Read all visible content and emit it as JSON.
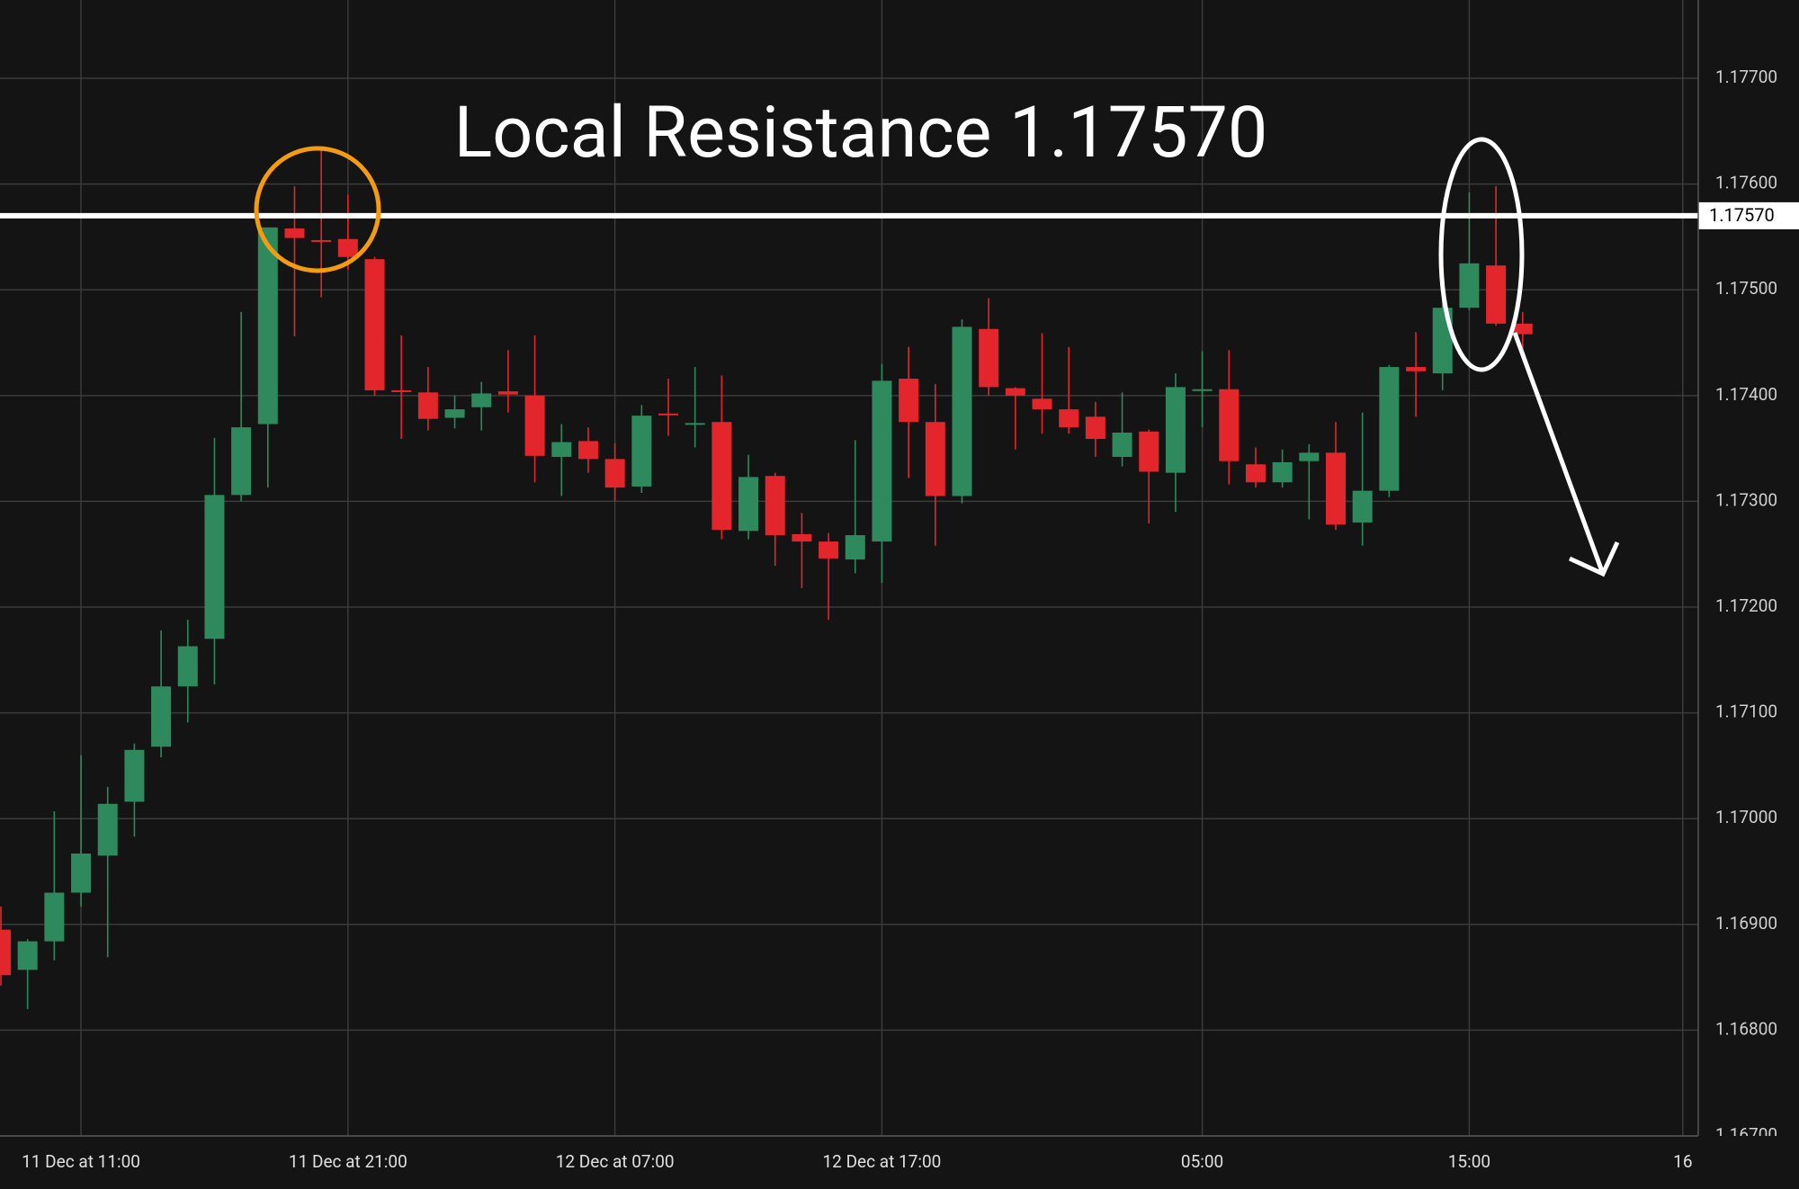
{
  "chart_data": {
    "type": "candlestick",
    "title": "Local Resistance 1.17570",
    "categories": [
      null,
      null,
      null,
      "11 Dec at 11:00",
      null,
      null,
      null,
      null,
      null,
      null,
      null,
      null,
      null,
      "11 Dec at 21:00",
      null,
      null,
      null,
      null,
      null,
      null,
      null,
      null,
      null,
      "12 Dec at 07:00",
      null,
      null,
      null,
      null,
      null,
      null,
      null,
      null,
      null,
      "12 Dec at 17:00",
      null,
      null,
      null,
      null,
      null,
      null,
      null,
      null,
      null,
      null,
      null,
      "05:00",
      null,
      null,
      null,
      null,
      null,
      null,
      null,
      null,
      null,
      "15:00",
      null,
      null,
      null,
      null,
      null,
      null,
      null,
      "16"
    ],
    "open": [
      1.16895,
      1.16857,
      1.16884,
      1.1693,
      1.16965,
      1.17016,
      1.17068,
      1.17125,
      1.1717,
      1.17306,
      1.17373,
      1.17558,
      1.17547,
      1.17548,
      1.17529,
      1.17405,
      1.17403,
      1.17379,
      1.17389,
      1.17404,
      1.174,
      1.17342,
      1.17357,
      1.1734,
      1.17314,
      1.17383,
      1.17373,
      1.17375,
      1.17272,
      1.17324,
      1.17269,
      1.17262,
      1.17245,
      1.17262,
      1.17416,
      1.17375,
      1.17305,
      1.17463,
      1.17407,
      1.17397,
      1.17387,
      1.1738,
      1.17342,
      1.17366,
      1.17327,
      1.17405,
      1.17406,
      1.17335,
      1.17318,
      1.17338,
      1.17346,
      1.1728,
      1.1731,
      1.17427,
      1.17421,
      1.17483,
      1.17523,
      1.17468,
      null,
      null,
      null,
      null,
      null,
      null
    ],
    "high": [
      1.16917,
      1.16886,
      1.17007,
      1.1706,
      1.1703,
      1.17071,
      1.17178,
      1.17188,
      1.1736,
      1.17479,
      1.17559,
      1.17598,
      1.17633,
      1.1759,
      1.17531,
      1.17457,
      1.17427,
      1.174,
      1.17413,
      1.17443,
      1.17457,
      1.17373,
      1.1737,
      1.17355,
      1.17391,
      1.17416,
      1.17427,
      1.17419,
      1.17344,
      1.17327,
      1.17289,
      1.1727,
      1.17358,
      1.1743,
      1.17446,
      1.17411,
      1.17472,
      1.17492,
      1.17408,
      1.17459,
      1.17446,
      1.17394,
      1.17403,
      1.17368,
      1.17421,
      1.17442,
      1.17443,
      1.17351,
      1.17349,
      1.17354,
      1.17375,
      1.17384,
      1.17429,
      1.1746,
      1.17494,
      1.17592,
      1.17598,
      1.17479,
      null,
      null,
      null,
      null,
      null,
      null
    ],
    "low": [
      1.16842,
      1.1682,
      1.16866,
      1.16917,
      1.16869,
      1.16983,
      1.17058,
      1.17091,
      1.17127,
      1.173,
      1.17313,
      1.17456,
      1.17493,
      1.17519,
      1.174,
      1.17359,
      1.17367,
      1.17369,
      1.17367,
      1.17384,
      1.17318,
      1.17305,
      1.17327,
      1.173,
      1.17308,
      1.17362,
      1.17351,
      1.17264,
      1.17264,
      1.17239,
      1.17218,
      1.17188,
      1.17232,
      1.17223,
      1.17322,
      1.17258,
      1.17298,
      1.174,
      1.17349,
      1.17364,
      1.17364,
      1.17342,
      1.17333,
      1.17279,
      1.1729,
      1.1737,
      1.17316,
      1.17313,
      1.17313,
      1.17283,
      1.17273,
      1.17258,
      1.17304,
      1.1738,
      1.17405,
      1.17481,
      1.17466,
      1.17438,
      null,
      null,
      null,
      null,
      null,
      null
    ],
    "close": [
      1.16852,
      1.16884,
      1.1693,
      1.16967,
      1.17014,
      1.17065,
      1.17125,
      1.17163,
      1.17306,
      1.1737,
      1.17559,
      1.17549,
      1.17546,
      1.17531,
      1.17405,
      1.17404,
      1.17378,
      1.17387,
      1.17402,
      1.17401,
      1.17343,
      1.17356,
      1.1734,
      1.17313,
      1.17381,
      1.17382,
      1.17374,
      1.17273,
      1.17323,
      1.17268,
      1.17262,
      1.17246,
      1.17268,
      1.17414,
      1.17375,
      1.17305,
      1.17465,
      1.17408,
      1.174,
      1.17387,
      1.1737,
      1.17359,
      1.17365,
      1.17328,
      1.17408,
      1.17406,
      1.17338,
      1.17318,
      1.17337,
      1.17346,
      1.17278,
      1.1731,
      1.17427,
      1.17423,
      1.17483,
      1.17525,
      1.17468,
      1.17458,
      null,
      null,
      null,
      null,
      null,
      null
    ],
    "up_color": "#2e8a5c",
    "down_color": "#e3262b",
    "ylim": [
      1.167,
      1.17774
    ],
    "yticks": [
      {
        "value": 1.167,
        "label": "1.16700"
      },
      {
        "value": 1.168,
        "label": "1.16800"
      },
      {
        "value": 1.169,
        "label": "1.16900"
      },
      {
        "value": 1.17,
        "label": "1.17000"
      },
      {
        "value": 1.171,
        "label": "1.17100"
      },
      {
        "value": 1.172,
        "label": "1.17200"
      },
      {
        "value": 1.173,
        "label": "1.17300"
      },
      {
        "value": 1.174,
        "label": "1.17400"
      },
      {
        "value": 1.175,
        "label": "1.17500"
      },
      {
        "value": 1.176,
        "label": "1.17600"
      },
      {
        "value": 1.177,
        "label": "1.17700"
      }
    ],
    "grid": true,
    "resistance": {
      "value": 1.1757,
      "label": "1.17570"
    }
  }
}
